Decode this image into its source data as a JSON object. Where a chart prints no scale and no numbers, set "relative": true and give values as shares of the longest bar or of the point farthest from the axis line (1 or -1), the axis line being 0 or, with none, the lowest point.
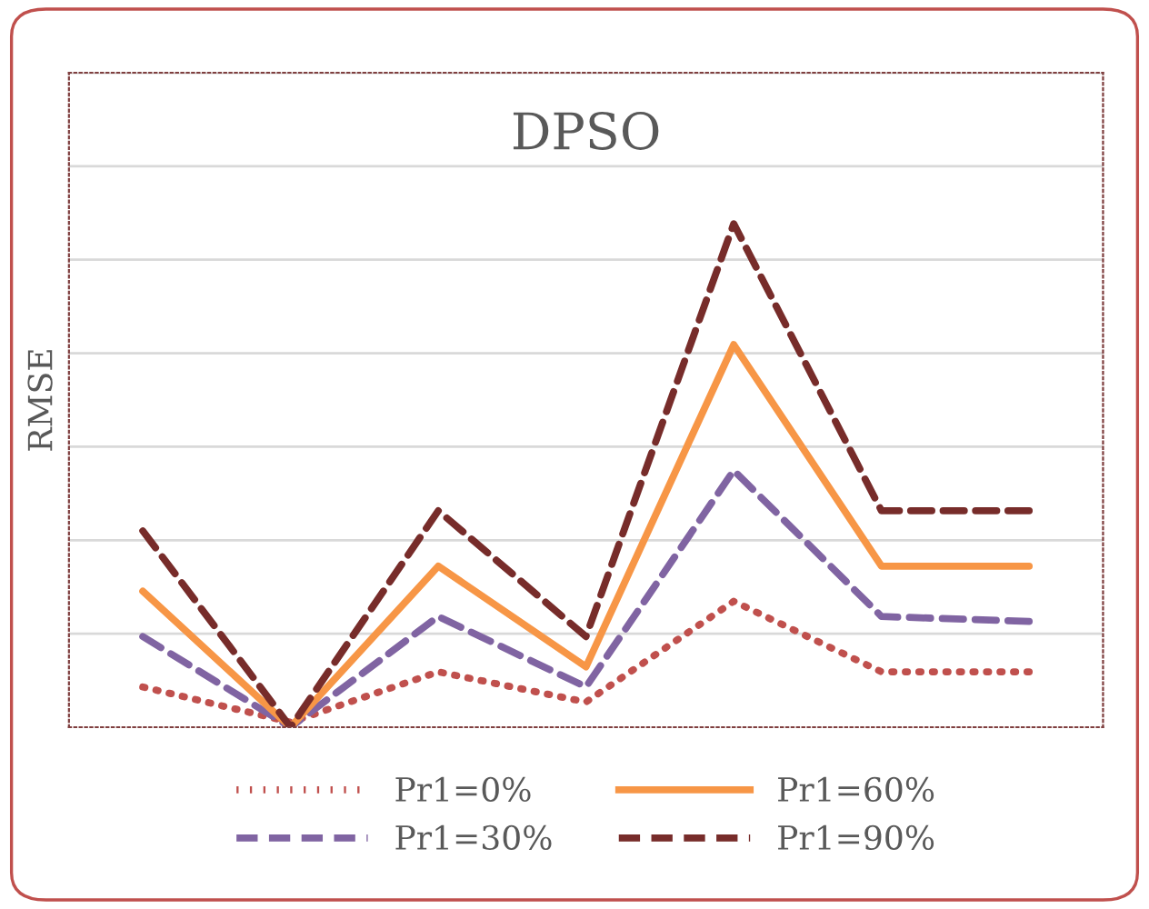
{
  "chart_data": {
    "type": "line",
    "title": "DPSO",
    "ylabel": "RMSE",
    "relative": true,
    "categories": [
      null,
      null,
      null,
      null,
      null,
      null,
      null
    ],
    "series": [
      {
        "name": "Pr1=0%",
        "color": "#c0504d",
        "line_style": "dotted",
        "values": [
          0.08,
          0.01,
          0.11,
          0.05,
          0.25,
          0.11,
          0.11
        ]
      },
      {
        "name": "Pr1=30%",
        "color": "#8064a2",
        "line_style": "dashed",
        "values": [
          0.18,
          0.0,
          0.22,
          0.08,
          0.51,
          0.22,
          0.21
        ]
      },
      {
        "name": "Pr1=60%",
        "color": "#f79646",
        "line_style": "solid",
        "values": [
          0.27,
          0.0,
          0.32,
          0.12,
          0.76,
          0.32,
          0.32
        ]
      },
      {
        "name": "Pr1=90%",
        "color": "#772c2a",
        "line_style": "dashed",
        "values": [
          0.39,
          0.0,
          0.43,
          0.18,
          1.0,
          0.43,
          0.43
        ]
      }
    ],
    "grid": "y",
    "legend": "bottom",
    "marker": "none"
  }
}
